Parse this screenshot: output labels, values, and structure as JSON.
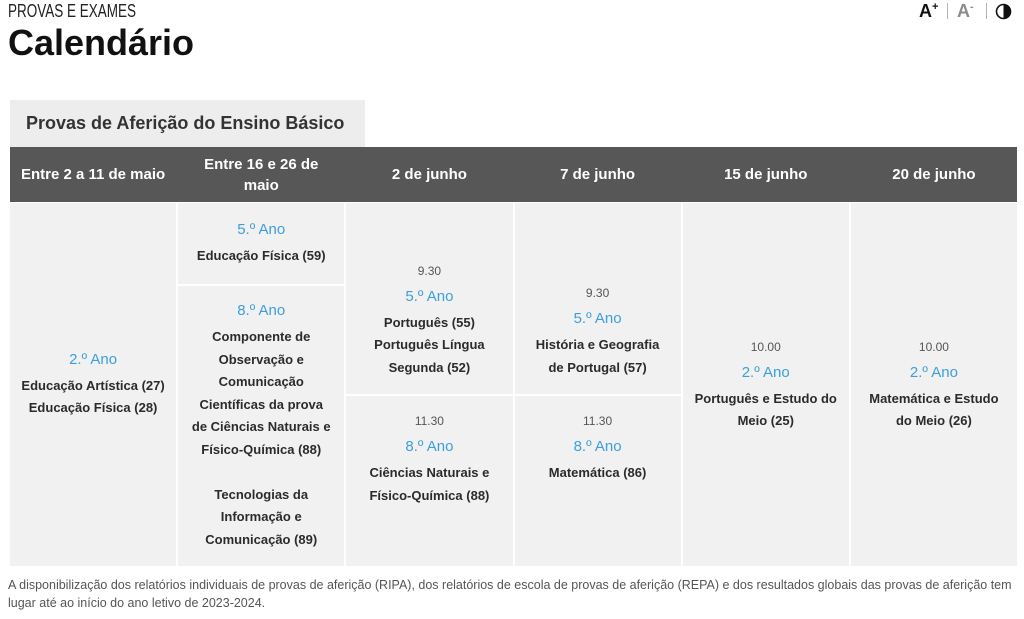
{
  "page": {
    "kicker": "PROVAS E EXAMES",
    "title": "Calendário"
  },
  "font_controls": {
    "increase": {
      "letter": "A",
      "sign": "+"
    },
    "decrease": {
      "letter": "A",
      "sign": "-"
    },
    "contrast_icon": "contrast-icon"
  },
  "tab": {
    "label": "Provas de Aferição do Ensino Básico"
  },
  "table": {
    "columns": [
      "Entre 2 a 11 de maio",
      "Entre 16 e 26 de maio",
      "2 de junho",
      "7 de junho",
      "15 de junho",
      "20 de junho"
    ],
    "cells": {
      "col1": {
        "year": "2.º Ano",
        "subjects": [
          "Educação Artística (27)",
          "Educação Física (28)"
        ]
      },
      "col2_top": {
        "year": "5.º Ano",
        "subjects": [
          "Educação Física (59)"
        ]
      },
      "col2_bottom": {
        "year": "8.º Ano",
        "subjects": [
          "Componente de Observação e Comunicação Científicas da prova de Ciências Naturais e Físico-Química (88)",
          "Tecnologias da Informação e Comunicação (89)"
        ]
      },
      "col3_top": {
        "time": "9.30",
        "year": "5.º Ano",
        "subjects": [
          "Português (55)",
          "Português Língua Segunda (52)"
        ]
      },
      "col3_bottom": {
        "time": "11.30",
        "year": "8.º Ano",
        "subjects": [
          "Ciências Naturais e Físico-Química (88)"
        ]
      },
      "col4_top": {
        "time": "9.30",
        "year": "5.º Ano",
        "subjects": [
          "História e Geografia de Portugal (57)"
        ]
      },
      "col4_bottom": {
        "time": "11.30",
        "year": "8.º Ano",
        "subjects": [
          "Matemática (86)"
        ]
      },
      "col5": {
        "time": "10.00",
        "year": "2.º Ano",
        "subjects": [
          "Português e Estudo do Meio (25)"
        ]
      },
      "col6": {
        "time": "10.00",
        "year": "2.º Ano",
        "subjects": [
          "Matemática e Estudo do Meio (26)"
        ]
      }
    }
  },
  "footnote": "A disponibilização dos relatórios individuais de provas de aferição (RIPA), dos relatórios de escola de provas de aferição (REPA) e dos resultados globais das provas de aferição tem lugar até ao início do ano letivo de 2023-2024.",
  "colors": {
    "accent": "#3d9fdb",
    "header_bg": "#575757",
    "cell_bg": "#f1f1f1",
    "tab_bg": "#ededed",
    "text": "#2b2b2b"
  }
}
